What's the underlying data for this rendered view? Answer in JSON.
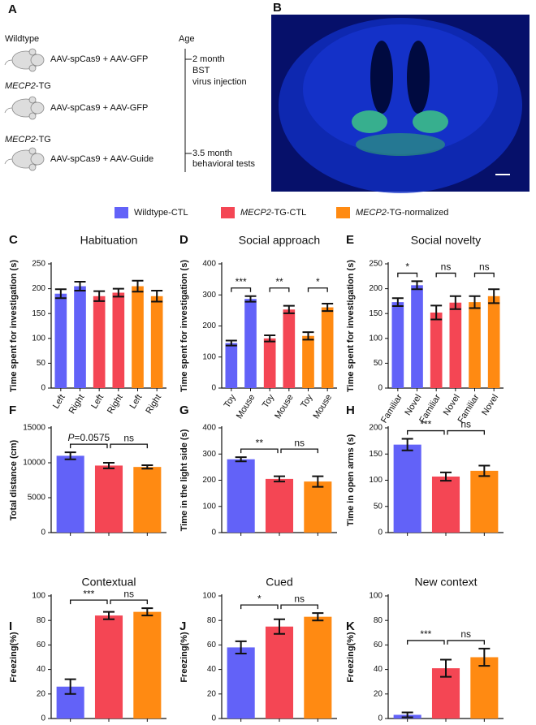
{
  "panel_a": {
    "label": "A",
    "groups": [
      {
        "genotype": "Wildtype",
        "treatment": "AAV-spCas9 + AAV-GFP"
      },
      {
        "genotype": "MECP2-TG",
        "treatment": "AAV-spCas9 + AAV-GFP"
      },
      {
        "genotype": "MECP2-TG",
        "treatment": "AAV-spCas9 + AAV-Guide"
      }
    ],
    "timeline": {
      "title": "Age",
      "events": [
        {
          "age": "2 month",
          "lines": [
            "BST",
            "virus injection"
          ]
        },
        {
          "age": "3.5 month",
          "lines": [
            "behavioral tests"
          ]
        }
      ]
    }
  },
  "panel_b": {
    "label": "B"
  },
  "legend": [
    {
      "name": "Wildtype-CTL",
      "color": "#6262f8"
    },
    {
      "name": "MECP2-TG-CTL",
      "color": "#f44654"
    },
    {
      "name": "MECP2-TG-normalized",
      "color": "#ff8a12"
    }
  ],
  "chart_data": [
    {
      "type": "bar",
      "panel": "C",
      "title": "Habituation",
      "y_label": "Time spent for investigation (s)",
      "categories": [
        "Left",
        "Right",
        "Left",
        "Right",
        "Left",
        "Right"
      ],
      "values": [
        190,
        205,
        185,
        192,
        205,
        185
      ],
      "errors": [
        9,
        9,
        10,
        8,
        11,
        11
      ],
      "colors": [
        "#6262f8",
        "#6262f8",
        "#f44654",
        "#f44654",
        "#ff8a12",
        "#ff8a12"
      ],
      "ylim": [
        0,
        250
      ],
      "yticks": [
        0,
        50,
        100,
        150,
        200,
        250
      ],
      "annotations": []
    },
    {
      "type": "bar",
      "panel": "D",
      "title": "Social approach",
      "y_label": "Time spent for investigation (s)",
      "categories": [
        "Toy",
        "Mouse",
        "Toy",
        "Mouse",
        "Toy",
        "Mouse"
      ],
      "values": [
        145,
        287,
        160,
        253,
        168,
        260
      ],
      "errors": [
        8,
        9,
        10,
        12,
        12,
        12
      ],
      "colors": [
        "#6262f8",
        "#6262f8",
        "#f44654",
        "#f44654",
        "#ff8a12",
        "#ff8a12"
      ],
      "ylim": [
        0,
        400
      ],
      "yticks": [
        0,
        100,
        200,
        300,
        400
      ],
      "annotations": [
        "***",
        "**",
        "*"
      ]
    },
    {
      "type": "bar",
      "panel": "E",
      "title": "Social novelty",
      "y_label": "Time spent for investigation (s)",
      "categories": [
        "Familiar",
        "Novel",
        "Familiar",
        "Novel",
        "Familiar",
        "Novel"
      ],
      "values": [
        173,
        207,
        152,
        172,
        173,
        185
      ],
      "errors": [
        8,
        8,
        14,
        13,
        12,
        14
      ],
      "colors": [
        "#6262f8",
        "#6262f8",
        "#f44654",
        "#f44654",
        "#ff8a12",
        "#ff8a12"
      ],
      "ylim": [
        0,
        250
      ],
      "yticks": [
        0,
        50,
        100,
        150,
        200,
        250
      ],
      "annotations": [
        "*",
        "ns",
        "ns"
      ]
    },
    {
      "type": "bar",
      "panel": "F",
      "y_label": "Total distance (cm)",
      "values": [
        11000,
        9600,
        9400
      ],
      "errors": [
        500,
        400,
        250
      ],
      "colors": [
        "#6262f8",
        "#f44654",
        "#ff8a12"
      ],
      "ylim": [
        0,
        15000
      ],
      "yticks": [
        0,
        5000,
        10000,
        15000
      ],
      "annotations": [
        "P=0.0575",
        "ns"
      ]
    },
    {
      "type": "bar",
      "panel": "G",
      "y_label": "Time in the light side (s)",
      "values": [
        280,
        205,
        195
      ],
      "errors": [
        8,
        10,
        20
      ],
      "colors": [
        "#6262f8",
        "#f44654",
        "#ff8a12"
      ],
      "ylim": [
        0,
        400
      ],
      "yticks": [
        0,
        100,
        200,
        300,
        400
      ],
      "annotations": [
        "**",
        "ns"
      ]
    },
    {
      "type": "bar",
      "panel": "H",
      "y_label": "Time in open arms (s)",
      "values": [
        168,
        107,
        118
      ],
      "errors": [
        11,
        8,
        10
      ],
      "colors": [
        "#6262f8",
        "#f44654",
        "#ff8a12"
      ],
      "ylim": [
        0,
        200
      ],
      "yticks": [
        0,
        50,
        100,
        150,
        200
      ],
      "annotations": [
        "***",
        "ns"
      ]
    },
    {
      "type": "bar",
      "panel": "I",
      "title": "Contextual",
      "y_label": "Freezing(%)",
      "values": [
        26,
        84,
        87
      ],
      "errors": [
        6,
        3,
        3
      ],
      "colors": [
        "#6262f8",
        "#f44654",
        "#ff8a12"
      ],
      "ylim": [
        0,
        100
      ],
      "yticks": [
        0,
        20,
        40,
        60,
        80,
        100
      ],
      "annotations": [
        "***",
        "ns"
      ]
    },
    {
      "type": "bar",
      "panel": "J",
      "title": "Cued",
      "y_label": "Freezing(%)",
      "values": [
        58,
        75,
        83
      ],
      "errors": [
        5,
        6,
        3
      ],
      "colors": [
        "#6262f8",
        "#f44654",
        "#ff8a12"
      ],
      "ylim": [
        0,
        100
      ],
      "yticks": [
        0,
        20,
        40,
        60,
        80,
        100
      ],
      "annotations": [
        "*",
        "ns"
      ]
    },
    {
      "type": "bar",
      "panel": "K",
      "title": "New context",
      "y_label": "Freezing(%)",
      "values": [
        3,
        41,
        50
      ],
      "errors": [
        2,
        7,
        7
      ],
      "colors": [
        "#6262f8",
        "#f44654",
        "#ff8a12"
      ],
      "ylim": [
        0,
        100
      ],
      "yticks": [
        0,
        20,
        40,
        60,
        80,
        100
      ],
      "annotations": [
        "***",
        "ns"
      ]
    }
  ]
}
